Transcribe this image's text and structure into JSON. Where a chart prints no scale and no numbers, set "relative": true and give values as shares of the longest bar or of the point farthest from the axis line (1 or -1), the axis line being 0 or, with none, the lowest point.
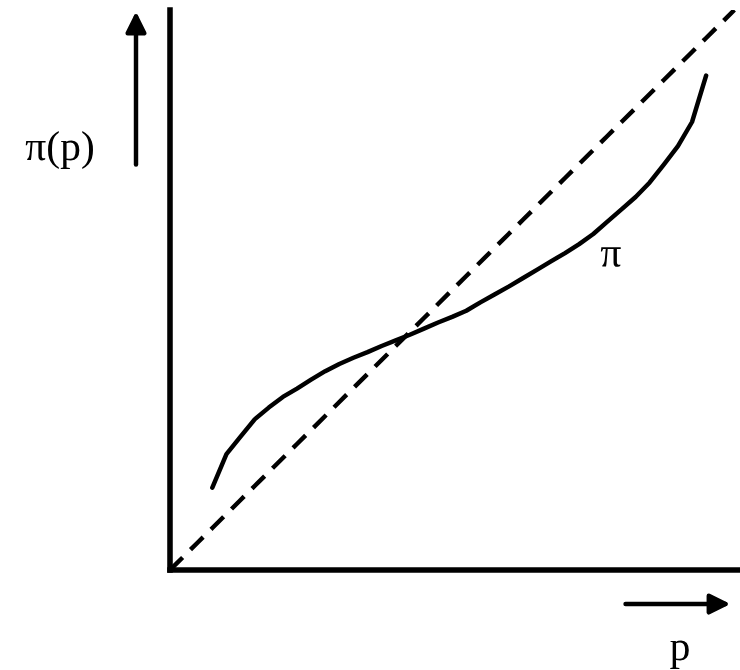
{
  "chart_data": {
    "type": "line",
    "relative": true,
    "xlabel": "p",
    "ylabel": "π(p)",
    "categories": [
      null,
      null,
      null,
      null,
      null,
      null,
      null,
      null,
      null,
      null,
      null,
      null,
      null,
      null,
      null,
      null,
      null,
      null,
      null,
      null,
      null,
      null,
      null,
      null,
      null,
      null,
      null,
      null,
      null,
      null,
      null,
      null,
      null,
      null,
      null,
      null,
      null,
      null,
      null,
      null,
      null
    ],
    "series": [
      {
        "name": "π",
        "color": "#000000",
        "line_style": "solid",
        "values": [
          null,
          null,
          null,
          0.147,
          0.207,
          0.238,
          0.269,
          0.29,
          0.309,
          0.324,
          0.34,
          0.355,
          0.368,
          0.379,
          0.389,
          0.4,
          0.41,
          0.42,
          0.431,
          0.442,
          0.452,
          0.463,
          0.478,
          0.492,
          0.506,
          0.521,
          0.536,
          0.551,
          0.566,
          0.582,
          0.6,
          0.622,
          0.644,
          0.666,
          0.692,
          0.724,
          0.757,
          0.8,
          0.883,
          null,
          null
        ]
      },
      {
        "color": "#000000",
        "line_style": "dashed",
        "values": [
          0,
          0.025,
          0.05,
          0.075,
          0.1,
          0.125,
          0.15,
          0.175,
          0.2,
          0.225,
          0.25,
          0.275,
          0.3,
          0.325,
          0.35,
          0.375,
          0.4,
          0.425,
          0.45,
          0.475,
          0.5,
          0.525,
          0.55,
          0.575,
          0.6,
          0.625,
          0.65,
          0.675,
          0.7,
          0.725,
          0.75,
          0.775,
          0.8,
          0.825,
          0.85,
          0.875,
          0.9,
          0.925,
          0.95,
          0.975,
          1
        ]
      }
    ],
    "legend": false,
    "marker": "none"
  }
}
